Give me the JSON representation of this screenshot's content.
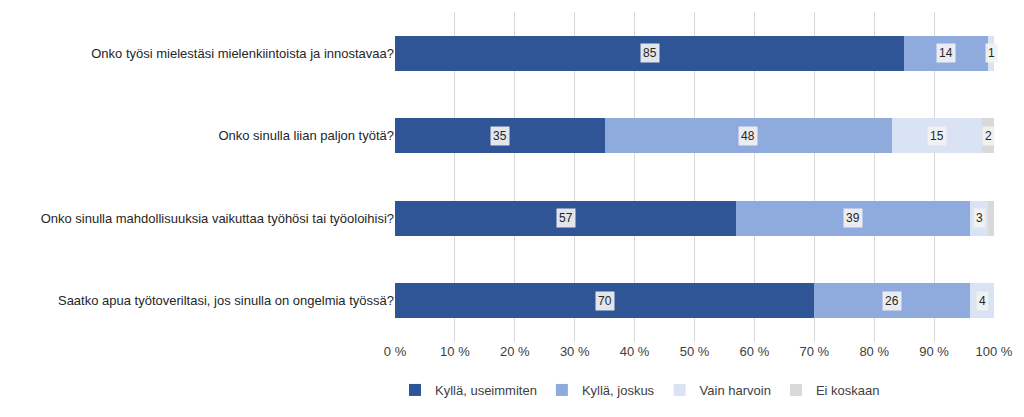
{
  "chart_data": {
    "type": "bar",
    "orientation": "horizontal",
    "stacked": true,
    "data_labels": true,
    "grid": true,
    "legend": "bottom",
    "categories": [
      "Onko työsi mielestäsi mielenkiintoista ja innostavaa?",
      "Onko sinulla liian paljon työtä?",
      "Onko sinulla mahdollisuuksia vaikuttaa työhösi tai työoloihisi?",
      "Saatko apua työtoveriltasi, jos sinulla on ongelmia työssä?"
    ],
    "series": [
      {
        "name": "Kyllä, useimmiten",
        "color": "#2f5597",
        "values": [
          85,
          35,
          57,
          70
        ]
      },
      {
        "name": "Kyllä, joskus",
        "color": "#8faadc",
        "values": [
          14,
          48,
          39,
          26
        ]
      },
      {
        "name": "Vain harvoin",
        "color": "#dae3f3",
        "values": [
          1,
          15,
          3,
          4
        ]
      },
      {
        "name": "Ei koskaan",
        "color": "#d9d9d9",
        "values": [
          0,
          2,
          1,
          0
        ]
      }
    ],
    "xlim": [
      0,
      100
    ],
    "xticks": [
      {
        "value": 0,
        "label": "0 %"
      },
      {
        "value": 10,
        "label": "10 %"
      },
      {
        "value": 20,
        "label": "20 %"
      },
      {
        "value": 30,
        "label": "30 %"
      },
      {
        "value": 40,
        "label": "40 %"
      },
      {
        "value": 50,
        "label": "50 %"
      },
      {
        "value": 60,
        "label": "60 %"
      },
      {
        "value": 70,
        "label": "70 %"
      },
      {
        "value": 80,
        "label": "80 %"
      },
      {
        "value": 90,
        "label": "90 %"
      },
      {
        "value": 100,
        "label": "100 %"
      }
    ]
  }
}
